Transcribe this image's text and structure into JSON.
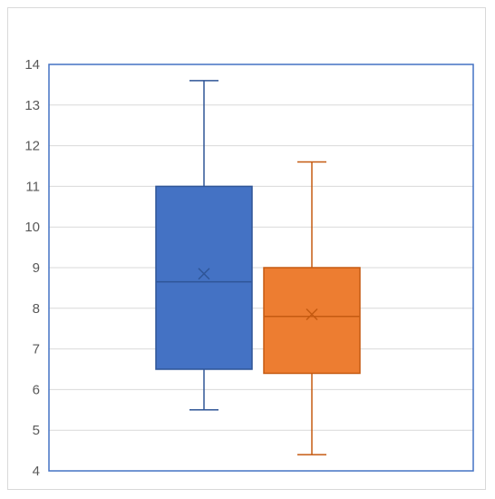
{
  "chart_data": {
    "type": "boxplot",
    "title": "",
    "xlabel": "",
    "ylabel": "",
    "ylim": [
      4,
      14
    ],
    "yticks": [
      4,
      5,
      6,
      7,
      8,
      9,
      10,
      11,
      12,
      13,
      14
    ],
    "grid": true,
    "legend": "none",
    "series": [
      {
        "color": "#4472c4",
        "edge_color": "#2f5597",
        "min": 5.5,
        "q1": 6.5,
        "median": 8.65,
        "q3": 11.0,
        "max": 13.6,
        "mean": 8.85
      },
      {
        "color": "#ed7d31",
        "edge_color": "#c55a11",
        "min": 4.4,
        "q1": 6.4,
        "median": 7.8,
        "q3": 9.0,
        "max": 11.6,
        "mean": 7.85
      }
    ]
  }
}
